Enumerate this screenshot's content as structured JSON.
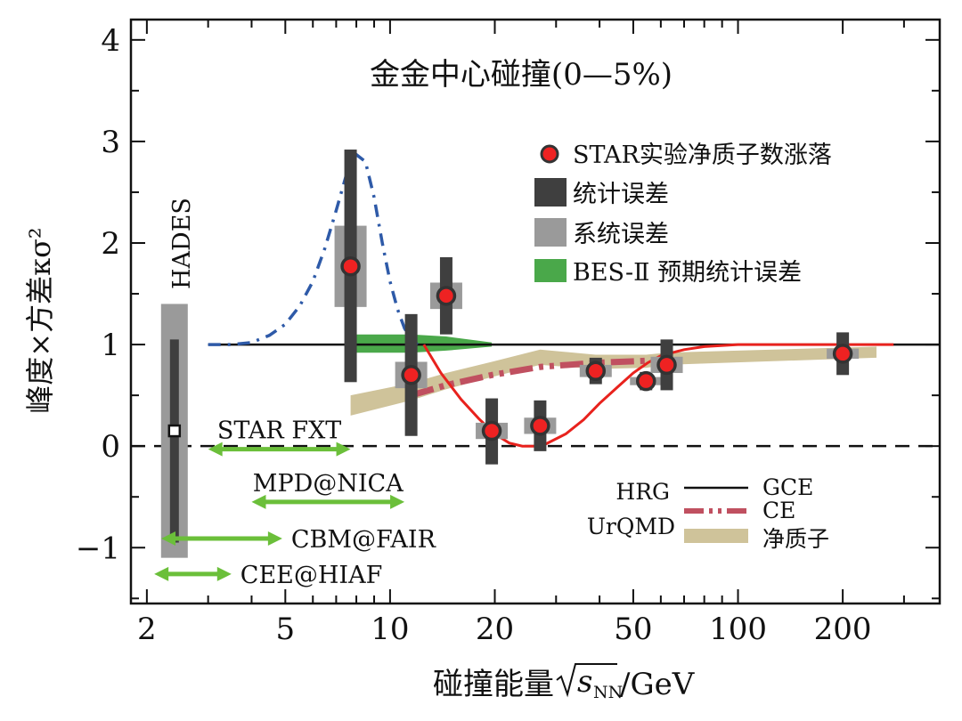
{
  "chart_data": {
    "type": "scatter",
    "title": "金金中心碰撞(0—5%)",
    "xlabel": "碰撞能量",
    "xlabel_sqrt": "s",
    "xlabel_sub": "NN",
    "xlabel_unit": "/GeV",
    "ylabel": "峰度×方差κσ²",
    "x_scale": "log",
    "xlim": [
      1.8,
      380
    ],
    "ylim": [
      -1.55,
      4.2
    ],
    "x_ticks": [
      2,
      5,
      10,
      20,
      50,
      100,
      200
    ],
    "x_tick_labels": [
      "2",
      "5",
      "10",
      "20",
      "50",
      "100",
      "200"
    ],
    "y_ticks": [
      -1,
      0,
      1,
      2,
      3,
      4
    ],
    "y_tick_labels": [
      "−1",
      "0",
      "1",
      "2",
      "3",
      "4"
    ],
    "reference_lines": [
      {
        "y": 1,
        "style": "solid",
        "name": "HRG GCE"
      },
      {
        "y": 0,
        "style": "dashed"
      }
    ],
    "hades": {
      "label": "HADES",
      "x": 2.4,
      "y": 0.15,
      "stat_err": [
        -0.95,
        1.05
      ],
      "sys_err": [
        -1.1,
        1.4
      ]
    },
    "star_points": {
      "name": "STAR实验净质子数涨落",
      "points": [
        {
          "x": 7.7,
          "y": 1.77,
          "stat_lo": 0.63,
          "stat_hi": 2.92,
          "sys_lo": 1.37,
          "sys_hi": 2.17
        },
        {
          "x": 11.5,
          "y": 0.7,
          "stat_lo": 0.1,
          "stat_hi": 1.3,
          "sys_lo": 0.57,
          "sys_hi": 0.83
        },
        {
          "x": 14.5,
          "y": 1.48,
          "stat_lo": 1.1,
          "stat_hi": 1.86,
          "sys_lo": 1.35,
          "sys_hi": 1.61
        },
        {
          "x": 19.6,
          "y": 0.15,
          "stat_lo": -0.18,
          "stat_hi": 0.47,
          "sys_lo": 0.07,
          "sys_hi": 0.23
        },
        {
          "x": 27,
          "y": 0.2,
          "stat_lo": -0.05,
          "stat_hi": 0.45,
          "sys_lo": 0.12,
          "sys_hi": 0.28
        },
        {
          "x": 39,
          "y": 0.74,
          "stat_lo": 0.61,
          "stat_hi": 0.87,
          "sys_lo": 0.68,
          "sys_hi": 0.8
        },
        {
          "x": 54.4,
          "y": 0.64,
          "stat_lo": 0.55,
          "stat_hi": 0.73,
          "sys_lo": 0.6,
          "sys_hi": 0.68
        },
        {
          "x": 62.4,
          "y": 0.8,
          "stat_lo": 0.55,
          "stat_hi": 1.05,
          "sys_lo": 0.72,
          "sys_hi": 0.88
        },
        {
          "x": 200,
          "y": 0.91,
          "stat_lo": 0.7,
          "stat_hi": 1.12,
          "sys_lo": 0.86,
          "sys_hi": 0.96
        }
      ]
    },
    "bes2_band": {
      "name": "BES-Ⅱ预期统计误差",
      "x": [
        7.7,
        11.5,
        14.5,
        19.6
      ],
      "y_upper": [
        1.1,
        1.1,
        1.08,
        1.02
      ],
      "y_lower": [
        0.92,
        0.92,
        0.94,
        0.98
      ]
    },
    "blue_curve": {
      "x": [
        3.0,
        3.5,
        4.0,
        4.5,
        5.0,
        5.5,
        6.0,
        6.5,
        7.0,
        7.5,
        8.0,
        8.5,
        9.0,
        9.5,
        10.0,
        10.5,
        11.0,
        11.5,
        12.0
      ],
      "y": [
        1.0,
        1.0,
        1.02,
        1.09,
        1.2,
        1.38,
        1.62,
        1.95,
        2.32,
        2.68,
        2.87,
        2.8,
        2.45,
        2.0,
        1.62,
        1.35,
        1.16,
        1.05,
        1.0
      ]
    },
    "red_curve": {
      "name": "theory",
      "x": [
        12.5,
        14,
        16,
        18,
        20,
        22,
        24,
        26,
        28,
        32,
        36,
        40,
        45,
        50,
        55,
        60,
        70,
        80,
        100,
        130,
        160,
        200,
        280
      ],
      "y": [
        1.0,
        0.72,
        0.46,
        0.27,
        0.12,
        0.03,
        0.0,
        0.0,
        0.02,
        0.12,
        0.26,
        0.42,
        0.58,
        0.72,
        0.82,
        0.89,
        0.95,
        0.98,
        1.0,
        1.0,
        1.0,
        1.0,
        1.0
      ]
    },
    "ce_curve": {
      "name": "CE",
      "x": [
        11.5,
        14.5,
        19.6,
        27,
        39,
        54.4,
        62.4
      ],
      "y": [
        0.5,
        0.6,
        0.7,
        0.78,
        0.82,
        0.84,
        0.85
      ]
    },
    "urqmd_band": {
      "name": "净质子",
      "x": [
        7.7,
        11.5,
        14.5,
        19.6,
        27,
        39,
        54.4,
        62.4,
        200,
        250
      ],
      "y_upper": [
        0.5,
        0.62,
        0.72,
        0.83,
        0.95,
        0.9,
        0.9,
        0.92,
        0.97,
        0.98
      ],
      "y_lower": [
        0.3,
        0.45,
        0.56,
        0.68,
        0.8,
        0.76,
        0.77,
        0.8,
        0.86,
        0.87
      ]
    },
    "facility_arrows": [
      {
        "label": "STAR FXT",
        "x_start": 3.0,
        "x_end": 7.7,
        "y": -0.03
      },
      {
        "label": "MPD@NICA",
        "x_start": 4.0,
        "x_end": 11.0,
        "y": -0.55
      },
      {
        "label": "CBM@FAIR",
        "x_start": 2.2,
        "x_end": 4.9,
        "y": -0.91
      },
      {
        "label": "CEE@HIAF",
        "x_start": 2.1,
        "x_end": 3.5,
        "y": -1.26
      }
    ],
    "legend_top": [
      {
        "label": "STAR实验净质子数涨落",
        "symbol": "circle"
      },
      {
        "label": "统计误差",
        "symbol": "dark-box"
      },
      {
        "label": "系统误差",
        "symbol": "gray-box"
      },
      {
        "label": "BES-Ⅱ 预期统计误差",
        "symbol": "green-box"
      }
    ],
    "legend_bottom": {
      "hrg_label": "HRG",
      "gce_label": "GCE",
      "ce_label": "CE",
      "urqmd_label": "UrQMD",
      "net_proton_label": "净质子"
    }
  },
  "colors": {
    "stat_error": "#3f3f3f",
    "sys_error": "#9a9a9a",
    "point_fill": "#ee2222",
    "point_stroke": "#333333",
    "bes2": "#4aa84a",
    "blue_curve": "#2e5aa8",
    "red_curve": "#e8221d",
    "ce_curve": "#c05060",
    "urqmd": "#cfc39a",
    "arrow": "#6bbf3a"
  }
}
